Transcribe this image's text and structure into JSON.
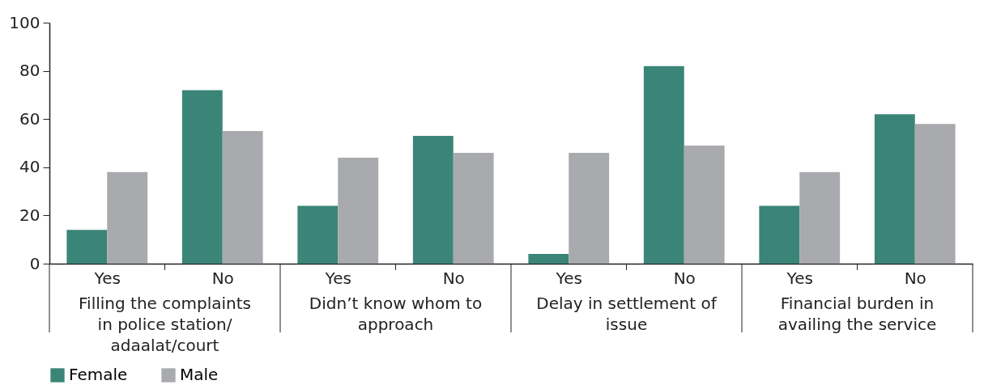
{
  "chart_data": {
    "type": "bar",
    "categories": [
      "Yes",
      "No",
      "Yes",
      "No",
      "Yes",
      "No",
      "Yes",
      "No"
    ],
    "series": [
      {
        "name": "Female",
        "color": "#3a8577",
        "values": [
          14,
          72,
          24,
          53,
          4,
          82,
          24,
          62
        ]
      },
      {
        "name": "Male",
        "color": "#a9aaad",
        "values": [
          38,
          55,
          44,
          46,
          46,
          49,
          38,
          58
        ]
      }
    ],
    "annotations": [
      "Filling the complaints in police station/ adaalat/court",
      "Didn’t know whom to approach",
      "Delay in settlement of issue",
      "Financial burden in availing the service"
    ],
    "ylim": [
      0,
      100
    ],
    "yticks": [
      0,
      20,
      40,
      60,
      80,
      100
    ],
    "grid": false,
    "legend": "bottom"
  }
}
